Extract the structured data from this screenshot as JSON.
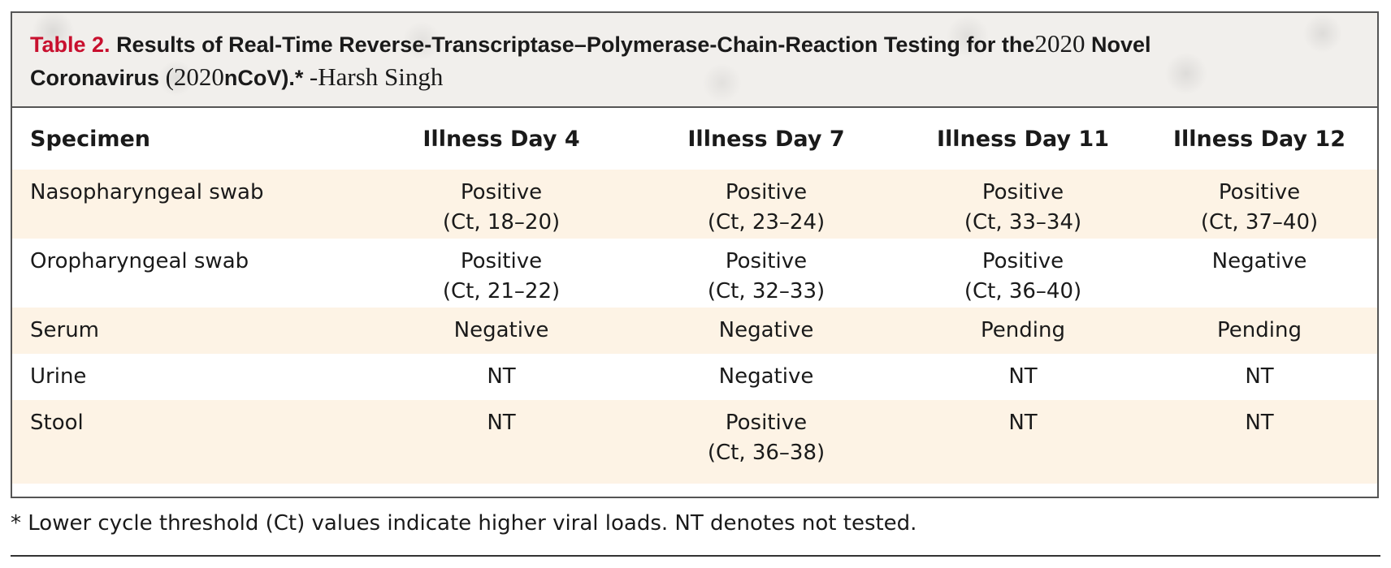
{
  "table": {
    "label": "Table 2.",
    "title_line1": "Results of Real-Time Reverse-Transcriptase–Polymerase-Chain-Reaction Testing for the",
    "title_year1": "2020",
    "title_line1_end": "Novel",
    "title_line2_start": "Coronavirus",
    "title_year2": "(2020",
    "title_line2_end": "nCoV).*",
    "title_author": "-Harsh Singh",
    "headers": [
      "Specimen",
      "Illness Day 4",
      "Illness Day 7",
      "Illness Day 11",
      "Illness Day 12"
    ],
    "rows": [
      [
        "Nasopharyngeal swab",
        "Positive\n(Ct, 18–20)",
        "Positive\n(Ct, 23–24)",
        "Positive\n(Ct, 33–34)",
        "Positive\n(Ct, 37–40)"
      ],
      [
        "Oropharyngeal swab",
        "Positive\n(Ct, 21–22)",
        "Positive\n(Ct, 32–33)",
        "Positive\n(Ct, 36–40)",
        "Negative"
      ],
      [
        "Serum",
        "Negative",
        "Negative",
        "Pending",
        "Pending"
      ],
      [
        "Urine",
        "NT",
        "Negative",
        "NT",
        "NT"
      ],
      [
        "Stool",
        "NT",
        "Positive\n(Ct, 36–38)",
        "NT",
        "NT"
      ]
    ],
    "footnote": "* Lower cycle threshold (Ct) values indicate higher viral loads. NT denotes not tested."
  },
  "colors": {
    "label": "#c8102e",
    "title_bg": "#f1efec",
    "row_shade": "#fdf3e5",
    "border": "#555555"
  }
}
